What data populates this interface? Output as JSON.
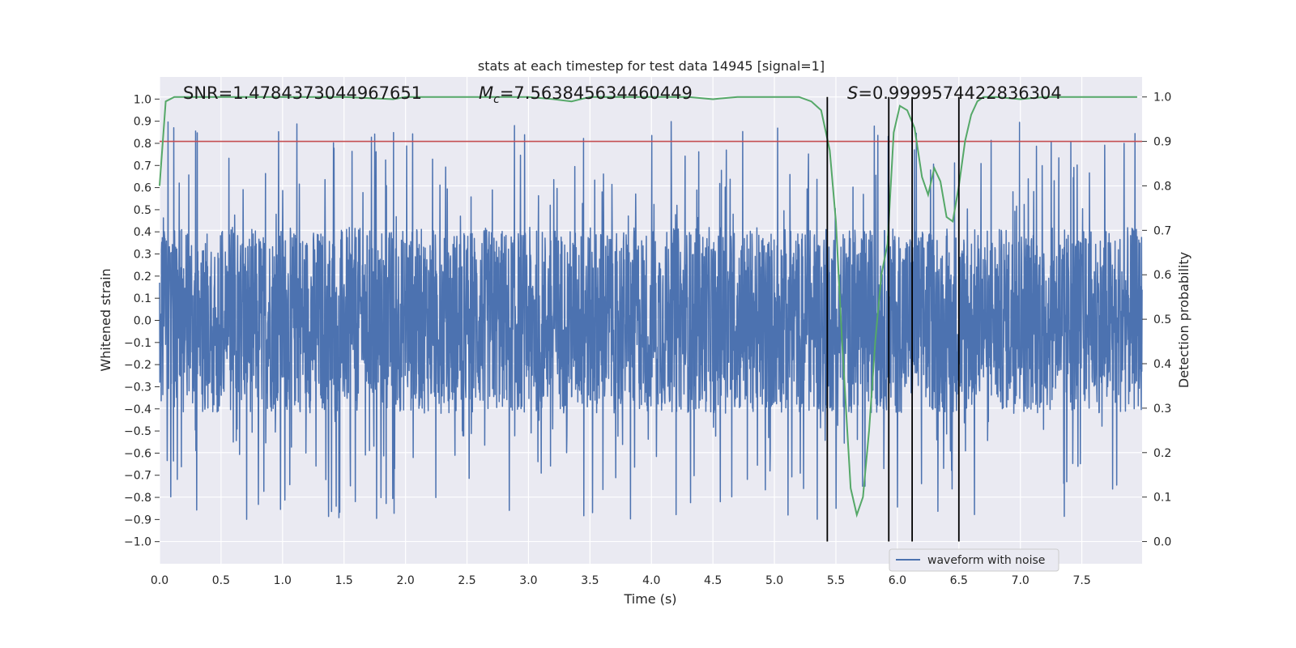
{
  "chart_data": {
    "type": "line",
    "title": "stats at each timestep for test data 14945 [signal=1]",
    "xlabel": "Time (s)",
    "ylabel_left": "Whitened strain",
    "ylabel_right": "Detection probability",
    "xlim": [
      0.0,
      7.99
    ],
    "ylim_left": [
      -1.1,
      1.1
    ],
    "ylim_right": [
      -0.05,
      1.045
    ],
    "x_ticks": [
      "0.0",
      "0.5",
      "1.0",
      "1.5",
      "2.0",
      "2.5",
      "3.0",
      "3.5",
      "4.0",
      "4.5",
      "5.0",
      "5.5",
      "6.0",
      "6.5",
      "7.0",
      "7.5"
    ],
    "y_ticks_left": [
      "1.0",
      "0.9",
      "0.8",
      "0.7",
      "0.6",
      "0.5",
      "0.4",
      "0.3",
      "0.2",
      "0.1",
      "0.0",
      "-0.1",
      "-0.2",
      "-0.3",
      "-0.4",
      "-0.5",
      "-0.6",
      "-0.7",
      "-0.8",
      "-0.9",
      "-1.0"
    ],
    "y_ticks_right": [
      "1.0",
      "0.9",
      "0.8",
      "0.7",
      "0.6",
      "0.5",
      "0.4",
      "0.3",
      "0.2",
      "0.1",
      "0.0"
    ],
    "grid": true,
    "legend": {
      "placement": "lower-right",
      "entries": [
        "waveform with noise"
      ]
    },
    "annotations": {
      "snr": "SNR=1.4784373044967651",
      "mc_symbol": "M",
      "mc_sub": "c",
      "mc_value": "=7.563845634460449",
      "s_symbol": "S",
      "s_value": "=0.9999574422836304"
    },
    "threshold_line": {
      "value": 0.9,
      "axis": "right",
      "color": "#c44e52"
    },
    "vertical_lines": [
      5.43,
      5.93,
      6.12,
      6.5
    ],
    "series": [
      {
        "name": "waveform with noise",
        "axis": "left",
        "color": "#4c72b0",
        "description_of_shape": "dense noisy strain oscillating roughly within -0.45..0.45 with spikes up to about 0.94 and down to about -1.0, sampled across 0-8 s"
      },
      {
        "axis": "right",
        "color": "#55a868",
        "x": [
          0.0,
          0.05,
          0.12,
          0.2,
          0.5,
          1.0,
          1.5,
          1.9,
          2.0,
          2.5,
          3.0,
          3.2,
          3.35,
          3.5,
          4.0,
          4.3,
          4.5,
          4.7,
          5.0,
          5.2,
          5.3,
          5.38,
          5.45,
          5.5,
          5.55,
          5.62,
          5.67,
          5.72,
          5.77,
          5.82,
          5.87,
          5.92,
          5.97,
          6.02,
          6.08,
          6.14,
          6.2,
          6.25,
          6.3,
          6.35,
          6.4,
          6.45,
          6.5,
          6.55,
          6.6,
          6.65,
          6.7,
          6.8,
          7.0,
          7.2,
          7.5,
          7.95
        ],
        "y": [
          0.8,
          0.99,
          1.0,
          1.0,
          1.0,
          1.0,
          1.0,
          0.995,
          1.0,
          1.0,
          1.0,
          0.995,
          0.99,
          1.0,
          1.0,
          1.0,
          0.995,
          1.0,
          1.0,
          1.0,
          0.99,
          0.97,
          0.88,
          0.72,
          0.45,
          0.12,
          0.06,
          0.1,
          0.25,
          0.45,
          0.6,
          0.67,
          0.92,
          0.98,
          0.97,
          0.93,
          0.82,
          0.78,
          0.84,
          0.81,
          0.73,
          0.72,
          0.8,
          0.9,
          0.96,
          0.99,
          1.0,
          1.0,
          0.995,
          1.0,
          1.0,
          1.0
        ]
      }
    ]
  }
}
